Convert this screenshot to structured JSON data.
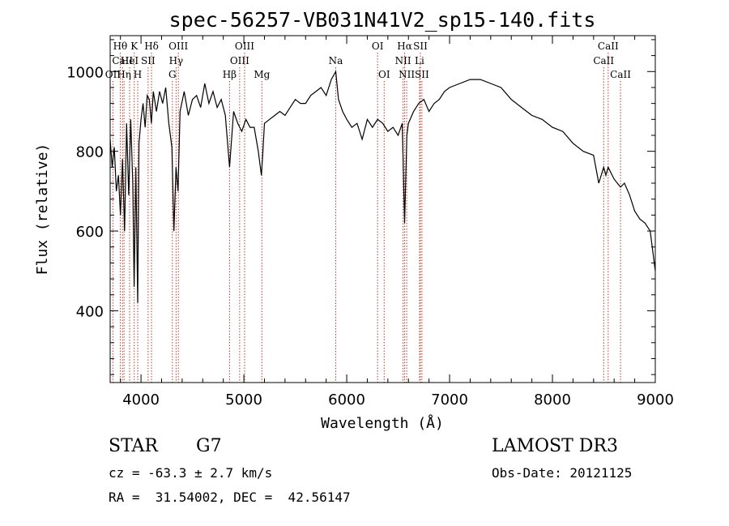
{
  "chart_data": {
    "type": "line",
    "title": "spec-56257-VB031N41V2_sp15-140.fits",
    "xlabel": "Wavelength (Å)",
    "ylabel": "Flux (relative)",
    "xlim": [
      3700,
      9000
    ],
    "ylim": [
      220,
      1090
    ],
    "x_ticks": [
      4000,
      5000,
      6000,
      7000,
      8000,
      9000
    ],
    "y_ticks": [
      400,
      600,
      800,
      1000
    ],
    "x_tick_labels": [
      "4000",
      "5000",
      "6000",
      "7000",
      "8000",
      "9000"
    ],
    "y_tick_labels": [
      "400",
      "600",
      "800",
      "1000"
    ],
    "grid": false,
    "line_color": "#000000",
    "marker_line_color": "#c0392b",
    "spectrum": {
      "x": [
        3700,
        3720,
        3740,
        3760,
        3780,
        3800,
        3820,
        3840,
        3860,
        3880,
        3900,
        3920,
        3933,
        3950,
        3968,
        3980,
        4000,
        4020,
        4040,
        4060,
        4080,
        4101,
        4120,
        4150,
        4180,
        4210,
        4240,
        4270,
        4300,
        4320,
        4340,
        4360,
        4380,
        4420,
        4460,
        4500,
        4540,
        4580,
        4620,
        4660,
        4700,
        4740,
        4780,
        4820,
        4861,
        4900,
        4940,
        4980,
        5020,
        5060,
        5100,
        5140,
        5170,
        5183,
        5200,
        5250,
        5300,
        5350,
        5400,
        5450,
        5500,
        5550,
        5600,
        5650,
        5700,
        5750,
        5800,
        5850,
        5893,
        5920,
        5960,
        6000,
        6050,
        6100,
        6150,
        6200,
        6250,
        6300,
        6350,
        6400,
        6450,
        6500,
        6540,
        6563,
        6585,
        6600,
        6650,
        6700,
        6750,
        6800,
        6850,
        6900,
        6950,
        7000,
        7100,
        7200,
        7300,
        7400,
        7500,
        7600,
        7700,
        7800,
        7900,
        8000,
        8100,
        8200,
        8300,
        8400,
        8450,
        8498,
        8520,
        8542,
        8600,
        8662,
        8700,
        8750,
        8800,
        8850,
        8900,
        8950,
        9000
      ],
      "y": [
        830,
        760,
        810,
        700,
        740,
        640,
        780,
        600,
        870,
        690,
        880,
        720,
        460,
        760,
        420,
        820,
        880,
        920,
        860,
        940,
        930,
        870,
        950,
        900,
        950,
        920,
        960,
        870,
        810,
        600,
        760,
        700,
        900,
        950,
        890,
        930,
        940,
        910,
        970,
        920,
        950,
        910,
        930,
        890,
        760,
        900,
        870,
        850,
        880,
        860,
        860,
        800,
        740,
        790,
        870,
        880,
        890,
        900,
        890,
        910,
        930,
        920,
        920,
        940,
        950,
        960,
        940,
        980,
        1000,
        930,
        900,
        880,
        860,
        870,
        830,
        880,
        860,
        880,
        870,
        850,
        860,
        840,
        870,
        620,
        840,
        870,
        900,
        920,
        930,
        900,
        920,
        930,
        950,
        960,
        970,
        980,
        980,
        970,
        960,
        930,
        910,
        890,
        880,
        860,
        850,
        820,
        800,
        790,
        720,
        760,
        740,
        760,
        730,
        710,
        720,
        690,
        650,
        630,
        620,
        600,
        500
      ]
    },
    "lines": [
      {
        "label": "Hθ",
        "x": 3798,
        "row": 0
      },
      {
        "label": "CaII",
        "x": 3820,
        "row": 1
      },
      {
        "label": "OII",
        "x": 3727,
        "row": 2
      },
      {
        "label": "Hη",
        "x": 3835,
        "row": 2
      },
      {
        "label": "HeI",
        "x": 3889,
        "row": 1
      },
      {
        "label": "K",
        "x": 3934,
        "row": 0
      },
      {
        "label": "SII",
        "x": 4069,
        "row": 1
      },
      {
        "label": "H",
        "x": 3968,
        "row": 2
      },
      {
        "label": "Hδ",
        "x": 4102,
        "row": 0
      },
      {
        "label": "OIII",
        "x": 4363,
        "row": 0
      },
      {
        "label": "Hγ",
        "x": 4341,
        "row": 1
      },
      {
        "label": "G",
        "x": 4305,
        "row": 2
      },
      {
        "label": "Hβ",
        "x": 4861,
        "row": 2
      },
      {
        "label": "OIII",
        "x": 5007,
        "row": 0
      },
      {
        "label": "OIII",
        "x": 4959,
        "row": 1
      },
      {
        "label": "Mg",
        "x": 5175,
        "row": 2
      },
      {
        "label": "Na",
        "x": 5893,
        "row": 1
      },
      {
        "label": "OI",
        "x": 6300,
        "row": 0
      },
      {
        "label": "OI",
        "x": 6364,
        "row": 2
      },
      {
        "label": "Hα",
        "x": 6563,
        "row": 0
      },
      {
        "label": "NII",
        "x": 6548,
        "row": 1
      },
      {
        "label": "NII",
        "x": 6583,
        "row": 2
      },
      {
        "label": "SII",
        "x": 6716,
        "row": 0
      },
      {
        "label": "Li",
        "x": 6708,
        "row": 1
      },
      {
        "label": "SII",
        "x": 6731,
        "row": 2
      },
      {
        "label": "CaII",
        "x": 8542,
        "row": 0
      },
      {
        "label": "CaII",
        "x": 8498,
        "row": 1
      },
      {
        "label": "CaII",
        "x": 8662,
        "row": 2
      }
    ]
  },
  "info": {
    "class_label": "STAR",
    "subclass": "G7",
    "survey": "LAMOST DR3",
    "cz": "cz = -63.3 ± 2.7 km/s",
    "obs_date": "Obs-Date: 20121125",
    "coords": "RA =  31.54002, DEC =  42.56147"
  }
}
